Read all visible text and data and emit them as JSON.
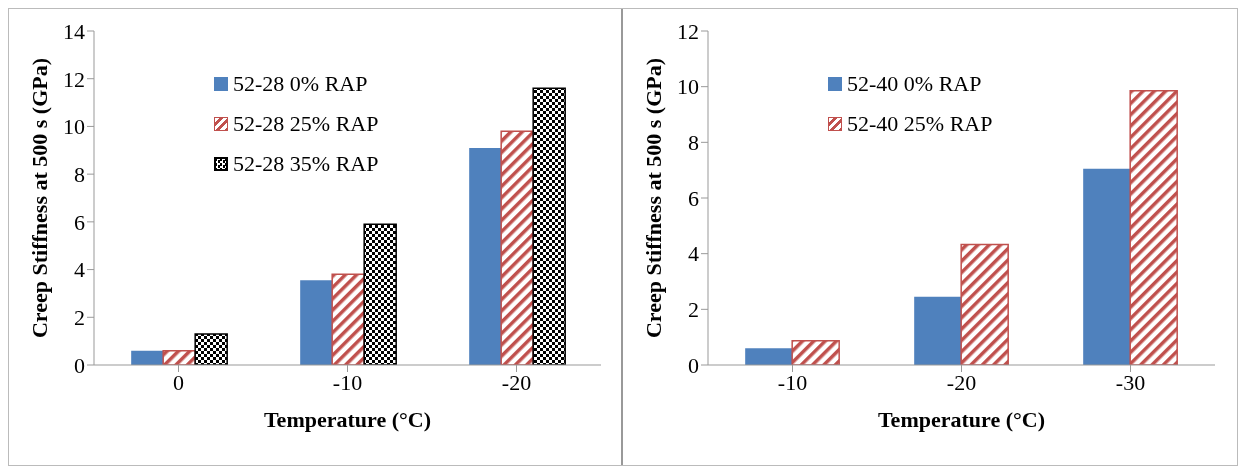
{
  "chart_data": [
    {
      "type": "bar",
      "xlabel": "Temperature (°C)",
      "ylabel": "Creep Stiffness at 500 s (GPa)",
      "categories": [
        "0",
        "-10",
        "-20"
      ],
      "series": [
        {
          "name": "52-28 0% RAP",
          "color": "#4f81bd",
          "values": [
            0.6,
            3.55,
            9.1
          ]
        },
        {
          "name": "52-28 25% RAP",
          "color": "#c0504d",
          "values": [
            0.6,
            3.8,
            9.8
          ]
        },
        {
          "name": "52-28 35% RAP",
          "color": "#000000",
          "values": [
            1.3,
            5.9,
            11.6
          ]
        }
      ],
      "ylim": [
        0,
        14
      ],
      "yticks": [
        0,
        2,
        4,
        6,
        8,
        10,
        12,
        14
      ],
      "grid": false,
      "legend": "top left"
    },
    {
      "type": "bar",
      "xlabel": "Temperature (°C)",
      "ylabel": "Creep Stiffness at 500 s (GPa)",
      "categories": [
        "-10",
        "-20",
        "-30"
      ],
      "series": [
        {
          "name": "52-40 0% RAP",
          "color": "#4f81bd",
          "values": [
            0.6,
            2.45,
            7.05
          ]
        },
        {
          "name": "52-40 25% RAP",
          "color": "#c0504d",
          "values": [
            0.87,
            4.33,
            9.85
          ]
        }
      ],
      "ylim": [
        0,
        12
      ],
      "yticks": [
        0,
        2,
        4,
        6,
        8,
        10,
        12
      ],
      "grid": false,
      "legend": "top left"
    }
  ]
}
